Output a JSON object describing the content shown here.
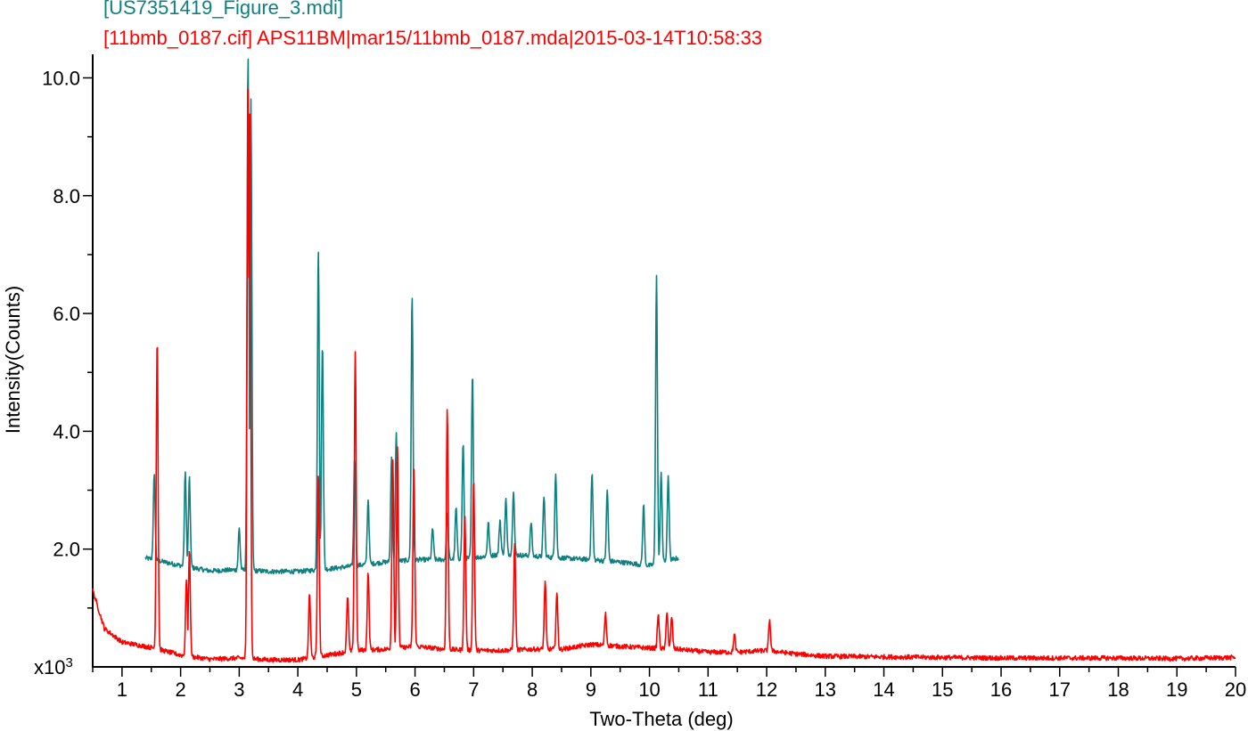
{
  "chart_data": {
    "type": "line",
    "xlabel": "Two-Theta (deg)",
    "ylabel": "Intensity(Counts)",
    "y_multiplier_label": "x10",
    "y_multiplier_exp": "3",
    "xlim": [
      0.5,
      20
    ],
    "ylim": [
      0,
      10.4
    ],
    "x_ticks": [
      1,
      2,
      3,
      4,
      5,
      6,
      7,
      8,
      9,
      10,
      11,
      12,
      13,
      14,
      15,
      16,
      17,
      18,
      19,
      20
    ],
    "y_ticks": [
      {
        "value": 2,
        "label": "2.0"
      },
      {
        "value": 4,
        "label": "4.0"
      },
      {
        "value": 6,
        "label": "6.0"
      },
      {
        "value": 8,
        "label": "8.0"
      },
      {
        "value": 10,
        "label": "10.0"
      }
    ],
    "grid": false,
    "series": [
      {
        "name": "[US7351419_Figure_3.mdi]",
        "color": "#0f7f80",
        "x_range": [
          1.4,
          10.5
        ],
        "baseline": [
          [
            1.4,
            1.85
          ],
          [
            2.0,
            1.72
          ],
          [
            2.5,
            1.63
          ],
          [
            3.0,
            1.65
          ],
          [
            3.5,
            1.62
          ],
          [
            4.0,
            1.62
          ],
          [
            4.5,
            1.66
          ],
          [
            5.0,
            1.72
          ],
          [
            5.5,
            1.78
          ],
          [
            6.0,
            1.82
          ],
          [
            6.5,
            1.82
          ],
          [
            7.0,
            1.85
          ],
          [
            7.5,
            1.92
          ],
          [
            8.0,
            1.88
          ],
          [
            8.5,
            1.85
          ],
          [
            9.0,
            1.82
          ],
          [
            9.5,
            1.78
          ],
          [
            10.0,
            1.72
          ],
          [
            10.5,
            1.85
          ]
        ],
        "peaks": [
          [
            1.55,
            3.25
          ],
          [
            2.08,
            3.3
          ],
          [
            2.15,
            3.2
          ],
          [
            3.0,
            2.35
          ],
          [
            3.15,
            10.4
          ],
          [
            3.2,
            9.6
          ],
          [
            4.35,
            7.1
          ],
          [
            4.42,
            5.5
          ],
          [
            4.97,
            3.55
          ],
          [
            5.2,
            2.85
          ],
          [
            5.6,
            3.6
          ],
          [
            5.68,
            3.95
          ],
          [
            5.95,
            6.3
          ],
          [
            6.3,
            2.35
          ],
          [
            6.55,
            2.6
          ],
          [
            6.7,
            2.7
          ],
          [
            6.82,
            3.8
          ],
          [
            6.98,
            4.95
          ],
          [
            7.25,
            2.45
          ],
          [
            7.45,
            2.5
          ],
          [
            7.55,
            2.85
          ],
          [
            7.68,
            3.0
          ],
          [
            7.98,
            2.45
          ],
          [
            8.2,
            2.9
          ],
          [
            8.4,
            3.3
          ],
          [
            9.02,
            3.3
          ],
          [
            9.28,
            3.0
          ],
          [
            9.9,
            2.75
          ],
          [
            10.12,
            6.65
          ],
          [
            10.2,
            3.3
          ],
          [
            10.32,
            3.25
          ]
        ]
      },
      {
        "name": "[11bmb_0187.cif] APS11BM|mar15/11bmb_0187.mda|2015-03-14T10:58:33",
        "color": "#ff0000",
        "x_range": [
          0.5,
          20
        ],
        "baseline": [
          [
            0.5,
            1.3
          ],
          [
            0.7,
            0.65
          ],
          [
            1.0,
            0.42
          ],
          [
            1.5,
            0.33
          ],
          [
            2.0,
            0.2
          ],
          [
            2.5,
            0.13
          ],
          [
            3.0,
            0.15
          ],
          [
            3.5,
            0.12
          ],
          [
            4.0,
            0.12
          ],
          [
            4.5,
            0.2
          ],
          [
            5.0,
            0.28
          ],
          [
            5.5,
            0.3
          ],
          [
            6.0,
            0.35
          ],
          [
            6.5,
            0.3
          ],
          [
            7.0,
            0.28
          ],
          [
            7.5,
            0.28
          ],
          [
            8.0,
            0.3
          ],
          [
            8.5,
            0.3
          ],
          [
            9.0,
            0.38
          ],
          [
            9.5,
            0.35
          ],
          [
            10.0,
            0.32
          ],
          [
            10.5,
            0.3
          ],
          [
            11.0,
            0.25
          ],
          [
            11.5,
            0.25
          ],
          [
            12.0,
            0.28
          ],
          [
            12.5,
            0.22
          ],
          [
            13.0,
            0.18
          ],
          [
            14.0,
            0.17
          ],
          [
            15.0,
            0.16
          ],
          [
            16.0,
            0.15
          ],
          [
            17.0,
            0.15
          ],
          [
            18.0,
            0.15
          ],
          [
            19.0,
            0.14
          ],
          [
            20.0,
            0.16
          ]
        ],
        "peaks": [
          [
            1.6,
            5.6
          ],
          [
            2.1,
            1.5
          ],
          [
            2.15,
            2.0
          ],
          [
            3.15,
            9.9
          ],
          [
            3.18,
            9.4
          ],
          [
            4.2,
            1.25
          ],
          [
            4.35,
            3.3
          ],
          [
            4.85,
            1.2
          ],
          [
            4.98,
            5.35
          ],
          [
            5.2,
            1.6
          ],
          [
            5.62,
            3.55
          ],
          [
            5.7,
            3.7
          ],
          [
            5.98,
            3.35
          ],
          [
            6.55,
            4.4
          ],
          [
            6.85,
            2.6
          ],
          [
            7.0,
            3.2
          ],
          [
            7.7,
            2.1
          ],
          [
            8.22,
            1.45
          ],
          [
            8.42,
            1.25
          ],
          [
            9.25,
            0.9
          ],
          [
            10.15,
            0.9
          ],
          [
            10.3,
            0.95
          ],
          [
            10.38,
            0.85
          ],
          [
            11.45,
            0.55
          ],
          [
            12.05,
            0.8
          ]
        ]
      }
    ]
  }
}
